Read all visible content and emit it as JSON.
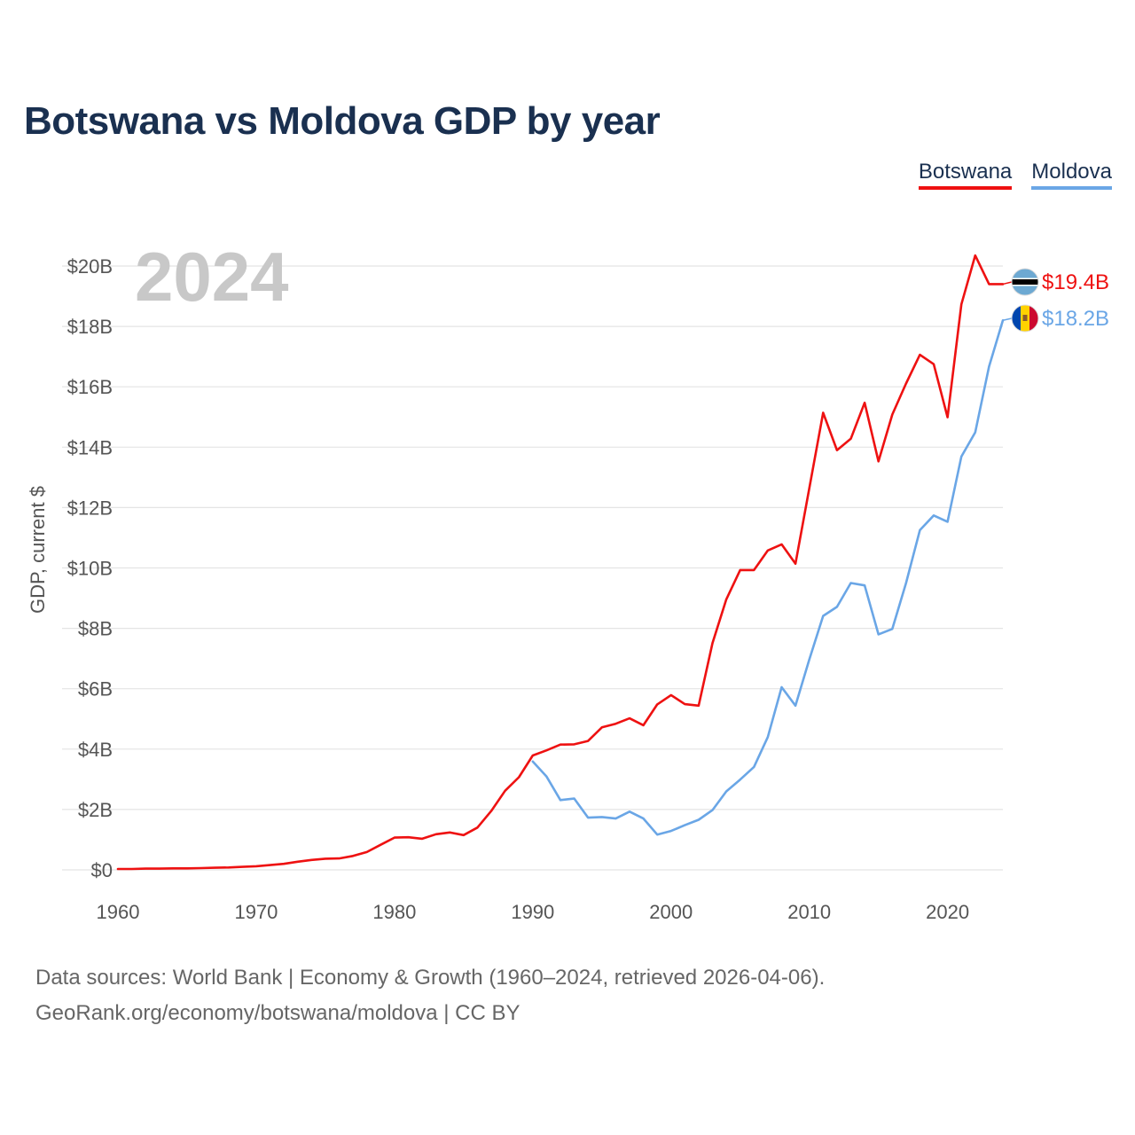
{
  "title": "Botswana vs Moldova GDP by year",
  "legend": [
    "Botswana",
    "Moldova"
  ],
  "year_label": "2024",
  "source_line1": "Data sources: World Bank | Economy & Growth (1960–2024, retrieved 2026-04-06).",
  "source_line2": "GeoRank.org/economy/botswana/moldova | CC BY",
  "chart_data": {
    "type": "line",
    "title": "Botswana vs Moldova GDP by year",
    "xlabel": "",
    "ylabel": "GDP, current $",
    "xlim": [
      1960,
      2024
    ],
    "ylim": [
      0,
      20
    ],
    "x_ticks": [
      1960,
      1970,
      1980,
      1990,
      2000,
      2010,
      2020
    ],
    "y_ticks": [
      0,
      2,
      4,
      6,
      8,
      10,
      12,
      14,
      16,
      18,
      20
    ],
    "y_tick_labels": [
      "$0",
      "$2B",
      "$4B",
      "$6B",
      "$8B",
      "$10B",
      "$12B",
      "$14B",
      "$16B",
      "$18B",
      "$20B"
    ],
    "grid": true,
    "units": "billions USD",
    "series": [
      {
        "name": "Botswana",
        "color": "#ee1111",
        "end_label": "$19.4B",
        "x_start": 1960,
        "values": [
          0.03,
          0.03,
          0.04,
          0.04,
          0.05,
          0.05,
          0.06,
          0.07,
          0.08,
          0.1,
          0.12,
          0.16,
          0.2,
          0.27,
          0.33,
          0.37,
          0.38,
          0.46,
          0.59,
          0.83,
          1.07,
          1.08,
          1.03,
          1.18,
          1.24,
          1.15,
          1.4,
          1.95,
          2.62,
          3.07,
          3.79,
          3.96,
          4.15,
          4.16,
          4.27,
          4.72,
          4.84,
          5.02,
          4.79,
          5.48,
          5.79,
          5.49,
          5.44,
          7.51,
          8.96,
          9.93,
          9.93,
          10.58,
          10.78,
          10.14,
          12.64,
          15.14,
          13.9,
          14.28,
          15.47,
          13.53,
          15.08,
          16.11,
          17.06,
          16.75,
          14.99,
          18.73,
          20.35,
          19.4,
          19.4
        ]
      },
      {
        "name": "Moldova",
        "color": "#6aa6e6",
        "end_label": "$18.2B",
        "x_start": 1990,
        "values": [
          3.59,
          3.09,
          2.31,
          2.36,
          1.73,
          1.75,
          1.7,
          1.93,
          1.7,
          1.17,
          1.29,
          1.48,
          1.66,
          1.98,
          2.6,
          2.99,
          3.41,
          4.4,
          6.05,
          5.44,
          6.97,
          8.41,
          8.71,
          9.5,
          9.42,
          7.8,
          7.98,
          9.5,
          11.25,
          11.74,
          11.53,
          13.69,
          14.49,
          16.67,
          18.2
        ]
      }
    ]
  }
}
